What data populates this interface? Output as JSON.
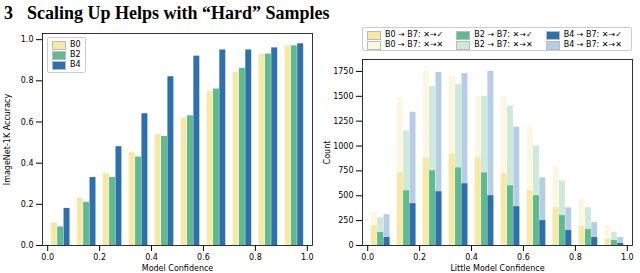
{
  "heading": {
    "number": "3",
    "title": "Scaling Up Helps with “Hard” Samples"
  },
  "chart_data": [
    {
      "type": "bar",
      "x_label": "Model Confidence",
      "y_label": "ImageNet-1K Accuracy",
      "bins": [
        0,
        0.1,
        0.2,
        0.3,
        0.4,
        0.5,
        0.6,
        0.7,
        0.8,
        0.9,
        1.0
      ],
      "series": [
        {
          "name": "B0",
          "color": "#f6e8a6",
          "values": [
            0.11,
            0.23,
            0.35,
            0.45,
            0.54,
            0.62,
            0.75,
            0.84,
            0.93,
            0.97
          ]
        },
        {
          "name": "B2",
          "color": "#5dbb8d",
          "values": [
            0.09,
            0.21,
            0.33,
            0.43,
            0.53,
            0.63,
            0.76,
            0.86,
            0.93,
            0.97
          ]
        },
        {
          "name": "B4",
          "color": "#2e6fae",
          "values": [
            0.18,
            0.33,
            0.48,
            0.64,
            0.82,
            0.92,
            0.95,
            0.95,
            0.96,
            0.98
          ]
        }
      ],
      "xlim": [
        -0.02,
        1.02
      ],
      "xticks": [
        {
          "value": 0,
          "label": "0.0"
        },
        {
          "value": 0.2,
          "label": "0.2"
        },
        {
          "value": 0.4,
          "label": "0.4"
        },
        {
          "value": 0.6,
          "label": "0.6"
        },
        {
          "value": 0.8,
          "label": "0.8"
        },
        {
          "value": 1.0,
          "label": "1.0"
        }
      ],
      "ylim": [
        0,
        1.03
      ],
      "yticks": [
        {
          "value": 0,
          "label": "0.0"
        },
        {
          "value": 0.2,
          "label": "0.2"
        },
        {
          "value": 0.4,
          "label": "0.4"
        },
        {
          "value": 0.6,
          "label": "0.6"
        },
        {
          "value": 0.8,
          "label": "0.8"
        },
        {
          "value": 1.0,
          "label": "1.0"
        }
      ],
      "legend": "top-left"
    },
    {
      "type": "bar",
      "x_label": "Little Model Confidence",
      "y_label": "Count",
      "bins": [
        0,
        0.1,
        0.2,
        0.3,
        0.4,
        0.5,
        0.6,
        0.7,
        0.8,
        0.9,
        1.0
      ],
      "series": [
        {
          "name": "B0 → B7: ✕→✓",
          "color": "#f6e8a6",
          "values": [
            200,
            730,
            880,
            920,
            880,
            720,
            550,
            380,
            190,
            60
          ]
        },
        {
          "name": "B2 → B7: ✕→✓",
          "color": "#5dbb8d",
          "values": [
            130,
            550,
            750,
            780,
            730,
            600,
            500,
            300,
            160,
            50
          ]
        },
        {
          "name": "B4 → B7: ✕→✓",
          "color": "#2e6fae",
          "values": [
            80,
            420,
            540,
            620,
            500,
            390,
            250,
            150,
            80,
            20
          ]
        },
        {
          "name": "B0 → B7: ✕→✕",
          "color": "#fcf7e2",
          "values": [
            330,
            1480,
            1750,
            1700,
            1500,
            1500,
            1200,
            800,
            470,
            190
          ]
        },
        {
          "name": "B2 → B7: ✕→✕",
          "color": "#cdeadb",
          "values": [
            280,
            1150,
            1600,
            1620,
            1500,
            1400,
            1000,
            650,
            380,
            130
          ]
        },
        {
          "name": "B4 → B7: ✕→✕",
          "color": "#b7cde5",
          "values": [
            310,
            1340,
            1740,
            1730,
            1750,
            1190,
            680,
            380,
            230,
            80
          ]
        }
      ],
      "xlim": [
        -0.02,
        1.02
      ],
      "xticks": [
        {
          "value": 0,
          "label": "0.0"
        },
        {
          "value": 0.2,
          "label": "0.2"
        },
        {
          "value": 0.4,
          "label": "0.4"
        },
        {
          "value": 0.6,
          "label": "0.6"
        },
        {
          "value": 0.8,
          "label": "0.8"
        },
        {
          "value": 1.0,
          "label": "1.0"
        }
      ],
      "ylim": [
        0,
        1870
      ],
      "yticks": [
        0,
        250,
        500,
        750,
        1000,
        1250,
        1500,
        1750
      ],
      "legend": "top"
    }
  ]
}
